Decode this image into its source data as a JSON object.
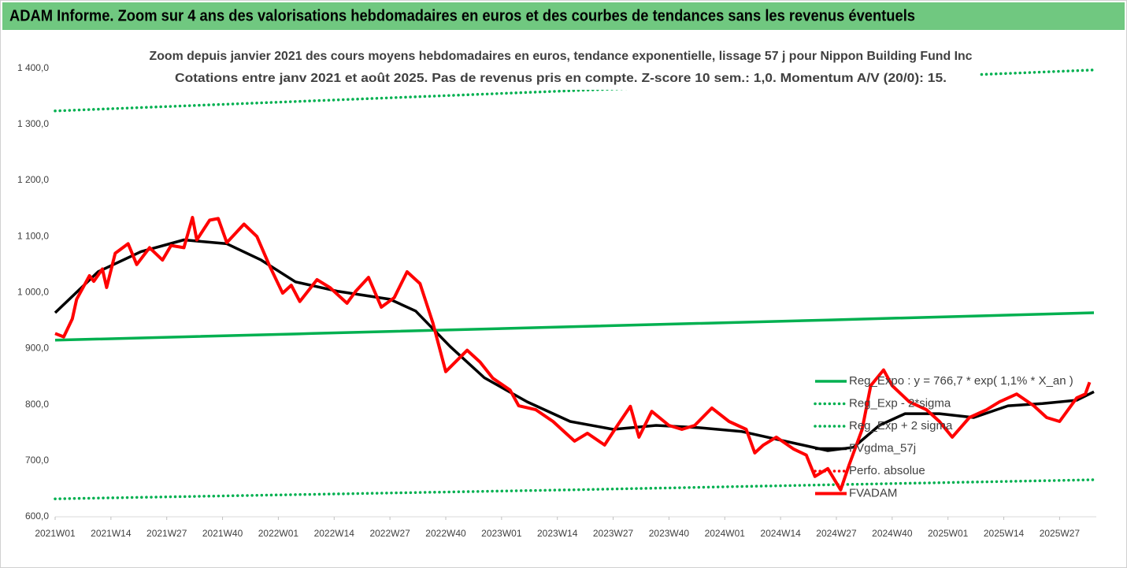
{
  "banner": "ADAM Informe. Zoom sur 4 ans des valorisations hebdomadaires en euros et des courbes de tendances sans les revenus éventuels",
  "chart_data": {
    "type": "line",
    "title": "Zoom depuis janvier 2021 des cours moyens hebdomadaires en euros, tendance exponentielle, lissage 57 j pour Nippon Building Fund Inc",
    "subtitle": "Cotations entre janv 2021 et août 2025. Pas de revenus pris en compte. Z-score 10 sem.: 1,0. Momentum A/V (20/0): 15.",
    "xlim": [
      0,
      242
    ],
    "xticks": [
      {
        "value": 0,
        "label": "2021W01"
      },
      {
        "value": 13,
        "label": "2021W14"
      },
      {
        "value": 26,
        "label": "2021W27"
      },
      {
        "value": 39,
        "label": "2021W40"
      },
      {
        "value": 52,
        "label": "2022W01"
      },
      {
        "value": 65,
        "label": "2022W14"
      },
      {
        "value": 78,
        "label": "2022W27"
      },
      {
        "value": 91,
        "label": "2022W40"
      },
      {
        "value": 104,
        "label": "2023W01"
      },
      {
        "value": 117,
        "label": "2023W14"
      },
      {
        "value": 130,
        "label": "2023W27"
      },
      {
        "value": 143,
        "label": "2023W40"
      },
      {
        "value": 156,
        "label": "2024W01"
      },
      {
        "value": 169,
        "label": "2024W14"
      },
      {
        "value": 182,
        "label": "2024W27"
      },
      {
        "value": 195,
        "label": "2024W40"
      },
      {
        "value": 208,
        "label": "2025W01"
      },
      {
        "value": 221,
        "label": "2025W14"
      },
      {
        "value": 234,
        "label": "2025W27"
      }
    ],
    "ylim": [
      600,
      1460
    ],
    "yticks": [
      {
        "value": 600,
        "label": "600,0"
      },
      {
        "value": 700,
        "label": "700,0"
      },
      {
        "value": 800,
        "label": "800,0"
      },
      {
        "value": 900,
        "label": "900,0"
      },
      {
        "value": 1000,
        "label": "1 000,0"
      },
      {
        "value": 1100,
        "label": "1 100,0"
      },
      {
        "value": 1200,
        "label": "1 200,0"
      },
      {
        "value": 1300,
        "label": "1 300,0"
      },
      {
        "value": 1400,
        "label": "1 400,0"
      }
    ],
    "legend": "right",
    "series": [
      {
        "name": "Reg_Expo : y = 766,7 * exp( 1,1% *  X_an )",
        "color": "#00b050",
        "style": "solid",
        "x": [
          0,
          60,
          120,
          180,
          242
        ],
        "values": [
          915,
          927,
          939,
          951,
          964
        ]
      },
      {
        "name": "Reg_Exp - 2*sigma",
        "color": "#00b050",
        "style": "dotted",
        "x": [
          0,
          60,
          120,
          180,
          242
        ],
        "values": [
          632,
          640,
          648,
          657,
          666
        ]
      },
      {
        "name": "Reg_Exp + 2 sigma",
        "color": "#00b050",
        "style": "dotted",
        "x": [
          0,
          60,
          120,
          180,
          242
        ],
        "values": [
          1324,
          1342,
          1360,
          1378,
          1397
        ]
      },
      {
        "name": "FVgdma_57j",
        "color": "#000000",
        "style": "solid",
        "x": [
          0,
          10,
          20,
          30,
          40,
          48,
          56,
          66,
          78,
          84,
          92,
          100,
          110,
          120,
          130,
          140,
          150,
          160,
          170,
          180,
          186,
          192,
          198,
          206,
          214,
          222,
          230,
          238,
          242
        ],
        "values": [
          964,
          1037,
          1073,
          1094,
          1087,
          1058,
          1019,
          1002,
          988,
          967,
          904,
          848,
          805,
          770,
          756,
          763,
          759,
          752,
          735,
          718,
          724,
          763,
          784,
          784,
          777,
          798,
          802,
          808,
          823
        ]
      },
      {
        "name": "Perfo. absolue",
        "color": "#ff0000",
        "style": "dotted",
        "x": [],
        "values": []
      },
      {
        "name": "FVADAM",
        "color": "#ff0000",
        "style": "solid",
        "x": [
          0,
          2,
          4,
          5,
          8,
          9,
          11,
          12,
          14,
          17,
          19,
          22,
          25,
          27,
          30,
          32,
          33,
          36,
          38,
          40,
          44,
          47,
          50,
          53,
          55,
          57,
          61,
          64,
          68,
          70,
          73,
          76,
          79,
          82,
          85,
          88,
          91,
          96,
          99,
          102,
          106,
          108,
          112,
          116,
          119,
          121,
          124,
          128,
          131,
          134,
          136,
          139,
          143,
          146,
          149,
          153,
          157,
          161,
          163,
          165,
          168,
          172,
          175,
          177,
          180,
          183,
          185,
          188,
          190,
          193,
          195,
          199,
          203,
          206,
          209,
          213,
          217,
          220,
          224,
          228,
          231,
          234,
          238,
          240,
          241
        ],
        "values": [
          927,
          921,
          953,
          988,
          1030,
          1020,
          1042,
          1009,
          1070,
          1087,
          1050,
          1080,
          1058,
          1084,
          1080,
          1134,
          1094,
          1129,
          1132,
          1089,
          1122,
          1100,
          1047,
          999,
          1013,
          984,
          1023,
          1009,
          981,
          1002,
          1027,
          974,
          991,
          1037,
          1016,
          946,
          859,
          897,
          876,
          847,
          826,
          798,
          791,
          770,
          749,
          735,
          749,
          728,
          763,
          797,
          742,
          788,
          763,
          756,
          763,
          794,
          770,
          756,
          714,
          728,
          742,
          721,
          710,
          672,
          686,
          648,
          693,
          756,
          834,
          862,
          834,
          805,
          791,
          770,
          742,
          777,
          791,
          805,
          819,
          798,
          777,
          770,
          812,
          819,
          840
        ]
      }
    ]
  }
}
